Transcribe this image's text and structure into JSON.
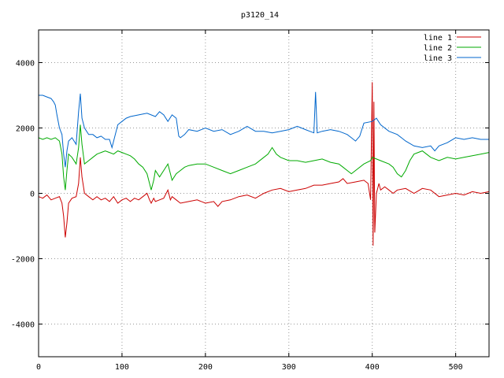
{
  "chart_data": {
    "type": "line",
    "title": "p3120_14",
    "xlabel": "",
    "ylabel": "",
    "xlim": [
      0,
      540
    ],
    "ylim": [
      -5000,
      5000
    ],
    "xticks": [
      0,
      100,
      200,
      300,
      400,
      500
    ],
    "yticks": [
      -4000,
      -2000,
      0,
      2000,
      4000
    ],
    "grid": true,
    "legend_position": "top-right",
    "series": [
      {
        "name": "line 1",
        "color": "#cc0000",
        "points": [
          [
            0,
            -100
          ],
          [
            5,
            -150
          ],
          [
            10,
            -50
          ],
          [
            15,
            -200
          ],
          [
            20,
            -150
          ],
          [
            25,
            -100
          ],
          [
            28,
            -300
          ],
          [
            30,
            -700
          ],
          [
            32,
            -1350
          ],
          [
            34,
            -900
          ],
          [
            36,
            -300
          ],
          [
            40,
            -150
          ],
          [
            45,
            -100
          ],
          [
            48,
            300
          ],
          [
            50,
            1100
          ],
          [
            52,
            500
          ],
          [
            55,
            0
          ],
          [
            60,
            -100
          ],
          [
            65,
            -200
          ],
          [
            70,
            -100
          ],
          [
            75,
            -200
          ],
          [
            80,
            -150
          ],
          [
            85,
            -250
          ],
          [
            90,
            -100
          ],
          [
            95,
            -300
          ],
          [
            100,
            -200
          ],
          [
            105,
            -150
          ],
          [
            110,
            -250
          ],
          [
            115,
            -150
          ],
          [
            120,
            -200
          ],
          [
            125,
            -100
          ],
          [
            130,
            0
          ],
          [
            133,
            -200
          ],
          [
            135,
            -300
          ],
          [
            138,
            -150
          ],
          [
            140,
            -250
          ],
          [
            145,
            -200
          ],
          [
            150,
            -150
          ],
          [
            155,
            100
          ],
          [
            158,
            -200
          ],
          [
            160,
            -100
          ],
          [
            165,
            -200
          ],
          [
            170,
            -300
          ],
          [
            180,
            -250
          ],
          [
            190,
            -200
          ],
          [
            200,
            -300
          ],
          [
            210,
            -250
          ],
          [
            215,
            -400
          ],
          [
            220,
            -250
          ],
          [
            230,
            -200
          ],
          [
            240,
            -100
          ],
          [
            250,
            -50
          ],
          [
            260,
            -150
          ],
          [
            270,
            0
          ],
          [
            280,
            100
          ],
          [
            290,
            150
          ],
          [
            300,
            50
          ],
          [
            310,
            100
          ],
          [
            320,
            150
          ],
          [
            330,
            250
          ],
          [
            340,
            250
          ],
          [
            350,
            300
          ],
          [
            360,
            350
          ],
          [
            365,
            450
          ],
          [
            370,
            300
          ],
          [
            380,
            350
          ],
          [
            390,
            400
          ],
          [
            395,
            300
          ],
          [
            398,
            -200
          ],
          [
            400,
            3400
          ],
          [
            401,
            -1600
          ],
          [
            402,
            2800
          ],
          [
            403,
            -1200
          ],
          [
            405,
            0
          ],
          [
            408,
            300
          ],
          [
            410,
            100
          ],
          [
            415,
            200
          ],
          [
            420,
            100
          ],
          [
            425,
            0
          ],
          [
            430,
            100
          ],
          [
            440,
            150
          ],
          [
            450,
            0
          ],
          [
            460,
            150
          ],
          [
            470,
            100
          ],
          [
            480,
            -100
          ],
          [
            490,
            -50
          ],
          [
            500,
            0
          ],
          [
            510,
            -50
          ],
          [
            520,
            50
          ],
          [
            530,
            0
          ],
          [
            540,
            50
          ]
        ]
      },
      {
        "name": "line 2",
        "color": "#00aa00",
        "points": [
          [
            0,
            1700
          ],
          [
            5,
            1650
          ],
          [
            10,
            1700
          ],
          [
            15,
            1650
          ],
          [
            20,
            1700
          ],
          [
            25,
            1600
          ],
          [
            28,
            1200
          ],
          [
            30,
            500
          ],
          [
            32,
            100
          ],
          [
            34,
            700
          ],
          [
            36,
            1200
          ],
          [
            40,
            1100
          ],
          [
            45,
            900
          ],
          [
            48,
            1400
          ],
          [
            50,
            2100
          ],
          [
            52,
            1500
          ],
          [
            55,
            900
          ],
          [
            60,
            1000
          ],
          [
            65,
            1100
          ],
          [
            70,
            1200
          ],
          [
            75,
            1250
          ],
          [
            80,
            1300
          ],
          [
            85,
            1250
          ],
          [
            90,
            1200
          ],
          [
            95,
            1300
          ],
          [
            100,
            1250
          ],
          [
            105,
            1200
          ],
          [
            110,
            1150
          ],
          [
            115,
            1050
          ],
          [
            120,
            900
          ],
          [
            125,
            800
          ],
          [
            130,
            600
          ],
          [
            133,
            300
          ],
          [
            135,
            100
          ],
          [
            138,
            400
          ],
          [
            140,
            700
          ],
          [
            145,
            500
          ],
          [
            150,
            700
          ],
          [
            155,
            900
          ],
          [
            158,
            600
          ],
          [
            160,
            400
          ],
          [
            165,
            600
          ],
          [
            170,
            700
          ],
          [
            175,
            800
          ],
          [
            180,
            850
          ],
          [
            190,
            900
          ],
          [
            200,
            900
          ],
          [
            210,
            800
          ],
          [
            220,
            700
          ],
          [
            230,
            600
          ],
          [
            240,
            700
          ],
          [
            250,
            800
          ],
          [
            260,
            900
          ],
          [
            270,
            1100
          ],
          [
            275,
            1200
          ],
          [
            280,
            1400
          ],
          [
            285,
            1200
          ],
          [
            290,
            1100
          ],
          [
            300,
            1000
          ],
          [
            310,
            1000
          ],
          [
            320,
            950
          ],
          [
            330,
            1000
          ],
          [
            340,
            1050
          ],
          [
            350,
            950
          ],
          [
            360,
            900
          ],
          [
            365,
            800
          ],
          [
            370,
            700
          ],
          [
            375,
            600
          ],
          [
            380,
            700
          ],
          [
            390,
            900
          ],
          [
            398,
            1000
          ],
          [
            400,
            1100
          ],
          [
            405,
            1050
          ],
          [
            410,
            1000
          ],
          [
            420,
            900
          ],
          [
            425,
            800
          ],
          [
            430,
            600
          ],
          [
            435,
            500
          ],
          [
            440,
            700
          ],
          [
            445,
            1000
          ],
          [
            450,
            1200
          ],
          [
            455,
            1250
          ],
          [
            460,
            1300
          ],
          [
            465,
            1200
          ],
          [
            470,
            1100
          ],
          [
            480,
            1000
          ],
          [
            490,
            1100
          ],
          [
            500,
            1050
          ],
          [
            510,
            1100
          ],
          [
            520,
            1150
          ],
          [
            530,
            1200
          ],
          [
            540,
            1250
          ]
        ]
      },
      {
        "name": "line 3",
        "color": "#0066cc",
        "points": [
          [
            0,
            3000
          ],
          [
            5,
            3000
          ],
          [
            10,
            2950
          ],
          [
            15,
            2900
          ],
          [
            18,
            2800
          ],
          [
            20,
            2700
          ],
          [
            22,
            2400
          ],
          [
            25,
            2000
          ],
          [
            28,
            1800
          ],
          [
            30,
            1200
          ],
          [
            32,
            800
          ],
          [
            34,
            1300
          ],
          [
            36,
            1600
          ],
          [
            40,
            1700
          ],
          [
            45,
            1500
          ],
          [
            48,
            2500
          ],
          [
            50,
            3050
          ],
          [
            52,
            2300
          ],
          [
            55,
            2000
          ],
          [
            60,
            1800
          ],
          [
            65,
            1800
          ],
          [
            70,
            1700
          ],
          [
            75,
            1750
          ],
          [
            80,
            1650
          ],
          [
            85,
            1650
          ],
          [
            88,
            1400
          ],
          [
            90,
            1600
          ],
          [
            95,
            2100
          ],
          [
            100,
            2200
          ],
          [
            105,
            2300
          ],
          [
            110,
            2350
          ],
          [
            120,
            2400
          ],
          [
            130,
            2450
          ],
          [
            140,
            2350
          ],
          [
            145,
            2500
          ],
          [
            150,
            2400
          ],
          [
            155,
            2200
          ],
          [
            160,
            2400
          ],
          [
            165,
            2300
          ],
          [
            168,
            1750
          ],
          [
            170,
            1700
          ],
          [
            175,
            1800
          ],
          [
            180,
            1950
          ],
          [
            190,
            1900
          ],
          [
            200,
            2000
          ],
          [
            210,
            1900
          ],
          [
            220,
            1950
          ],
          [
            230,
            1800
          ],
          [
            240,
            1900
          ],
          [
            250,
            2050
          ],
          [
            260,
            1900
          ],
          [
            270,
            1900
          ],
          [
            280,
            1850
          ],
          [
            290,
            1900
          ],
          [
            300,
            1950
          ],
          [
            310,
            2050
          ],
          [
            320,
            1950
          ],
          [
            325,
            1900
          ],
          [
            330,
            1850
          ],
          [
            332,
            3100
          ],
          [
            334,
            1850
          ],
          [
            340,
            1900
          ],
          [
            350,
            1950
          ],
          [
            360,
            1900
          ],
          [
            365,
            1850
          ],
          [
            370,
            1800
          ],
          [
            375,
            1700
          ],
          [
            380,
            1600
          ],
          [
            385,
            1750
          ],
          [
            390,
            2150
          ],
          [
            400,
            2200
          ],
          [
            405,
            2300
          ],
          [
            410,
            2100
          ],
          [
            420,
            1900
          ],
          [
            430,
            1800
          ],
          [
            440,
            1600
          ],
          [
            450,
            1450
          ],
          [
            460,
            1400
          ],
          [
            470,
            1450
          ],
          [
            475,
            1300
          ],
          [
            480,
            1450
          ],
          [
            490,
            1550
          ],
          [
            500,
            1700
          ],
          [
            510,
            1650
          ],
          [
            520,
            1700
          ],
          [
            530,
            1650
          ],
          [
            540,
            1650
          ]
        ]
      }
    ]
  }
}
